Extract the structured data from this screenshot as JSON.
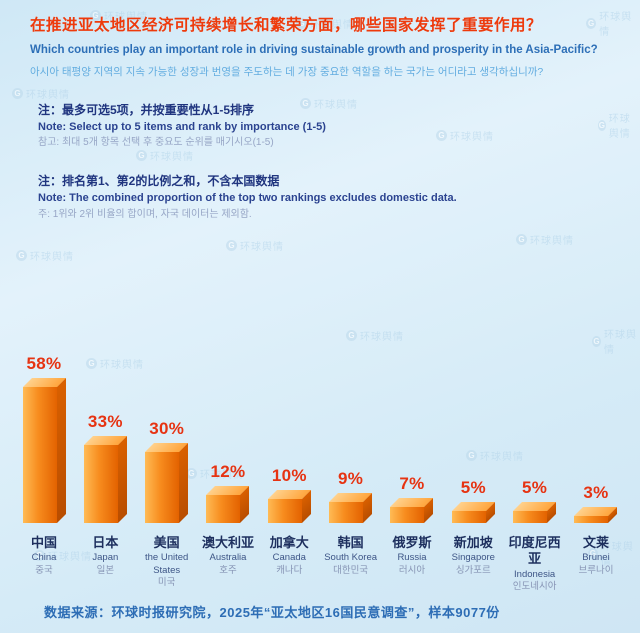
{
  "header": {
    "title_cn": "在推进亚太地区经济可持续增长和繁荣方面，哪些国家发挥了重要作用？",
    "title_en": "Which countries play an important role in driving sustainable growth and prosperity in the Asia-Pacific?",
    "title_kr": "아시아 태평양 지역의 지속 가능한 성장과 번영을 주도하는 데 가장 중요한 역할을 하는 국가는 어디라고 생각하십니까?"
  },
  "notes": {
    "note1_cn": "注：最多可选5项，并按重要性从1-5排序",
    "note1_en": "Note: Select up to 5 items and rank by importance (1-5)",
    "note1_kr": "참고: 최대 5개 항목 선택 후 중요도 순위를 매기시오(1-5)",
    "note2_cn": "注：排名第1、第2的比例之和，不含本国数据",
    "note2_en": "Note: The combined proportion of the top two rankings excludes domestic data.",
    "note2_kr": "주: 1위와 2위 비율의 합이며, 자국 데이터는 제외함."
  },
  "chart_data": {
    "type": "bar",
    "title": "在推进亚太地区经济可持续增长和繁荣方面，哪些国家发挥了重要作用？",
    "xlabel": "",
    "ylabel": "",
    "ylim": [
      0,
      60
    ],
    "grid": false,
    "legend": false,
    "categories": [
      "中国",
      "日本",
      "美国",
      "澳大利亚",
      "加拿大",
      "韩国",
      "俄罗斯",
      "新加坡",
      "印度尼西亚",
      "文莱"
    ],
    "values": [
      58,
      33,
      30,
      12,
      10,
      9,
      7,
      5,
      5,
      3
    ],
    "value_labels": [
      "58%",
      "33%",
      "30%",
      "12%",
      "10%",
      "9%",
      "7%",
      "5%",
      "5%",
      "3%"
    ],
    "category_labels": [
      {
        "cn": "中国",
        "en": "China",
        "kr": "중국"
      },
      {
        "cn": "日本",
        "en": "Japan",
        "kr": "일본"
      },
      {
        "cn": "美国",
        "en": "the United States",
        "kr": "미국"
      },
      {
        "cn": "澳大利亚",
        "en": "Australia",
        "kr": "호주"
      },
      {
        "cn": "加拿大",
        "en": "Canada",
        "kr": "캐나다"
      },
      {
        "cn": "韩国",
        "en": "South Korea",
        "kr": "대한민국"
      },
      {
        "cn": "俄罗斯",
        "en": "Russia",
        "kr": "러시아"
      },
      {
        "cn": "新加坡",
        "en": "Singapore",
        "kr": "싱가포르"
      },
      {
        "cn": "印度尼西亚",
        "en": "Indonesia",
        "kr": "인도네시아"
      },
      {
        "cn": "文莱",
        "en": "Brunei",
        "kr": "브루나이"
      }
    ]
  },
  "footer": {
    "source": "数据来源：环球时报研究院，2025年“亚太地区16国民意调查”，样本9077份"
  },
  "watermark": {
    "label": "环球舆情",
    "logo_letter": "G"
  },
  "colors": {
    "title_red": "#ee3a0c",
    "title_blue": "#2d6fb7",
    "title_kr_blue": "#63ade0",
    "note_navy": "#20357f",
    "percent_red": "#e63312",
    "bar_front_light": "#ffbb55",
    "bar_front_dark": "#e36200",
    "bar_top": "#ffa53d",
    "bar_side": "#b84d00",
    "source_blue": "#2d6db5"
  }
}
